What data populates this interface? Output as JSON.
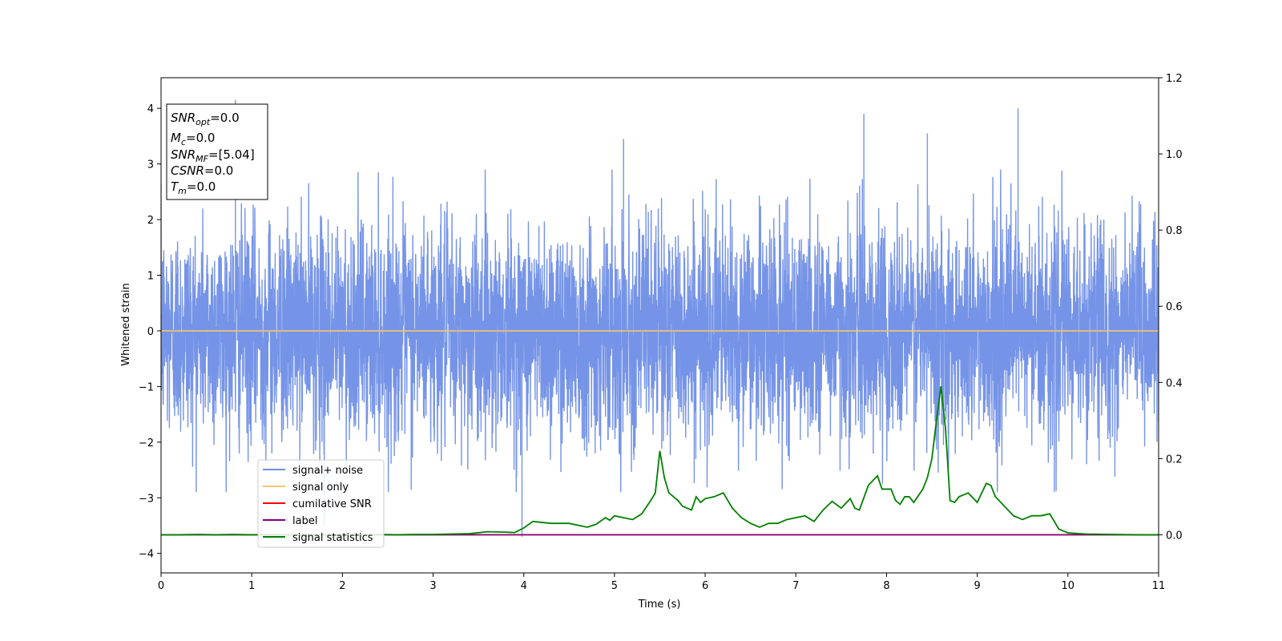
{
  "chart_data": {
    "type": "line",
    "xlabel": "Time (s)",
    "ylabel": "Whitened strain",
    "xlim": [
      0,
      11
    ],
    "ylim_left": [
      -4.35,
      4.55
    ],
    "ylim_right": [
      -0.1,
      1.2
    ],
    "x_ticks": [
      "0",
      "1",
      "2",
      "3",
      "4",
      "5",
      "6",
      "7",
      "8",
      "9",
      "10",
      "11"
    ],
    "y_ticks_left": [
      "−4",
      "−3",
      "−2",
      "−1",
      "0",
      "1",
      "2",
      "3",
      "4"
    ],
    "y_ticks_right": [
      "0.0",
      "0.2",
      "0.4",
      "0.6",
      "0.8",
      "1.0",
      "1.2"
    ],
    "grid": false,
    "legend_position": "lower-left",
    "series": [
      {
        "name": "signal+ noise",
        "color": "#6f8ee6",
        "axis": "left",
        "description_stats": {
          "typical_abs_max": 2.2,
          "peak_max": 4.15,
          "peak_min": -3.7
        },
        "noted_spikes": [
          [
            0.82,
            4.15
          ],
          [
            1.8,
            -3.5
          ],
          [
            3.98,
            -3.7
          ],
          [
            5.1,
            3.45
          ],
          [
            7.75,
            3.9
          ],
          [
            8.45,
            3.55
          ],
          [
            9.45,
            4.0
          ]
        ]
      },
      {
        "name": "signal only",
        "color": "#f5c56e",
        "axis": "left",
        "x": [
          0,
          11
        ],
        "y": [
          0,
          0
        ]
      },
      {
        "name": "cumilative SNR",
        "color": "#ff0000",
        "axis": "right",
        "x": [
          0,
          11
        ],
        "y": [
          0,
          0
        ]
      },
      {
        "name": "label",
        "color": "#800080",
        "axis": "right",
        "x": [
          0,
          11
        ],
        "y": [
          0,
          0
        ]
      },
      {
        "name": "signal statistics",
        "color": "#008000",
        "axis": "right",
        "x": [
          0,
          0.2,
          0.4,
          0.6,
          0.8,
          1.0,
          1.2,
          1.4,
          1.6,
          1.8,
          2.0,
          2.2,
          2.4,
          2.6,
          2.8,
          3.0,
          3.2,
          3.4,
          3.6,
          3.8,
          3.9,
          4.0,
          4.1,
          4.3,
          4.5,
          4.7,
          4.8,
          4.9,
          4.95,
          5.0,
          5.1,
          5.2,
          5.3,
          5.4,
          5.45,
          5.5,
          5.55,
          5.6,
          5.7,
          5.75,
          5.8,
          5.85,
          5.9,
          5.95,
          6.0,
          6.1,
          6.2,
          6.3,
          6.4,
          6.5,
          6.6,
          6.65,
          6.7,
          6.8,
          6.9,
          7.0,
          7.1,
          7.2,
          7.3,
          7.4,
          7.5,
          7.6,
          7.65,
          7.7,
          7.8,
          7.9,
          7.95,
          8.0,
          8.05,
          8.1,
          8.15,
          8.2,
          8.25,
          8.3,
          8.4,
          8.45,
          8.5,
          8.55,
          8.6,
          8.65,
          8.7,
          8.75,
          8.8,
          8.9,
          9.0,
          9.1,
          9.15,
          9.2,
          9.3,
          9.4,
          9.45,
          9.5,
          9.55,
          9.6,
          9.7,
          9.8,
          9.9,
          10.0,
          10.2,
          10.5,
          10.8,
          11.0
        ],
        "y": [
          0.0,
          0.0,
          0.001,
          0.0,
          0.001,
          0.0,
          0.001,
          0.0,
          0.001,
          0.0,
          0.001,
          0.0,
          0.001,
          0.0,
          0.001,
          0.001,
          0.002,
          0.003,
          0.008,
          0.007,
          0.006,
          0.018,
          0.035,
          0.03,
          0.03,
          0.02,
          0.028,
          0.045,
          0.038,
          0.05,
          0.045,
          0.04,
          0.055,
          0.09,
          0.11,
          0.22,
          0.15,
          0.11,
          0.09,
          0.075,
          0.07,
          0.065,
          0.1,
          0.085,
          0.095,
          0.1,
          0.11,
          0.07,
          0.045,
          0.03,
          0.02,
          0.025,
          0.03,
          0.03,
          0.04,
          0.045,
          0.05,
          0.035,
          0.065,
          0.088,
          0.07,
          0.095,
          0.07,
          0.065,
          0.13,
          0.155,
          0.12,
          0.12,
          0.12,
          0.09,
          0.08,
          0.1,
          0.1,
          0.085,
          0.12,
          0.15,
          0.2,
          0.3,
          0.39,
          0.28,
          0.09,
          0.085,
          0.1,
          0.11,
          0.085,
          0.135,
          0.13,
          0.1,
          0.075,
          0.05,
          0.045,
          0.04,
          0.045,
          0.05,
          0.05,
          0.055,
          0.015,
          0.005,
          0.002,
          0.001,
          0.0,
          0.0
        ]
      }
    ]
  },
  "info_box": {
    "lines": [
      {
        "symbol": "SNR",
        "sub": "opt",
        "value": "=0.0"
      },
      {
        "symbol": "M",
        "sub": "c",
        "value": "=0.0"
      },
      {
        "symbol": "SNR",
        "sub": "MF",
        "value": "=[5.04]"
      },
      {
        "symbol": "CSNR",
        "sub": "",
        "value": "=0.0"
      },
      {
        "symbol": "T",
        "sub": "m",
        "value": "=0.0"
      }
    ]
  }
}
